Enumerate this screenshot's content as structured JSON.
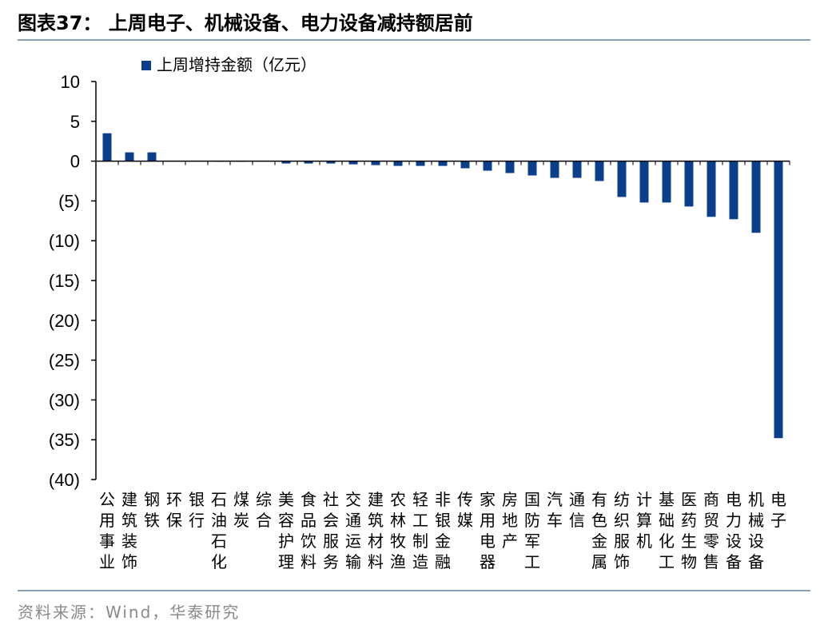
{
  "header": {
    "title": "图表37：  上周电子、机械设备、电力设备减持额居前"
  },
  "footer": {
    "source": "资料来源：Wind，华泰研究"
  },
  "colors": {
    "bar": "#0b3f8c",
    "rule": "#8aa0b8",
    "axis": "#000000",
    "source_text": "#8a8a8a"
  },
  "chart_data": {
    "type": "bar",
    "legend": {
      "label": "上周增持金额（亿元）",
      "position": "top"
    },
    "ylim": [
      -40,
      10
    ],
    "yticks": [
      10,
      5,
      0,
      -5,
      -10,
      -15,
      -20,
      -25,
      -30,
      -35,
      -40
    ],
    "ytick_labels": [
      "10",
      "5",
      "0",
      "(5)",
      "(10)",
      "(15)",
      "(20)",
      "(25)",
      "(30)",
      "(35)",
      "(40)"
    ],
    "categories": [
      "公用事业",
      "建筑装饰",
      "钢铁",
      "环保",
      "银行",
      "石油石化",
      "煤炭",
      "综合",
      "美容护理",
      "食品饮料",
      "社会服务",
      "交通运输",
      "建筑材料",
      "农林牧渔",
      "轻工制造",
      "非银金融",
      "传媒",
      "家用电器",
      "房地产",
      "国防军工",
      "汽车",
      "通信",
      "有色金属",
      "纺织服饰",
      "计算机",
      "基础化工",
      "医药生物",
      "商贸零售",
      "电力设备",
      "机械设备",
      "电子"
    ],
    "values": [
      3.5,
      1.1,
      1.1,
      0.05,
      0.05,
      0.03,
      0.02,
      0.0,
      -0.3,
      -0.3,
      -0.3,
      -0.4,
      -0.5,
      -0.6,
      -0.6,
      -0.6,
      -0.9,
      -1.2,
      -1.5,
      -1.8,
      -2.1,
      -2.1,
      -2.5,
      -4.5,
      -5.2,
      -5.2,
      -5.7,
      -7.0,
      -7.3,
      -9.0,
      -34.8
    ],
    "grid": false
  }
}
